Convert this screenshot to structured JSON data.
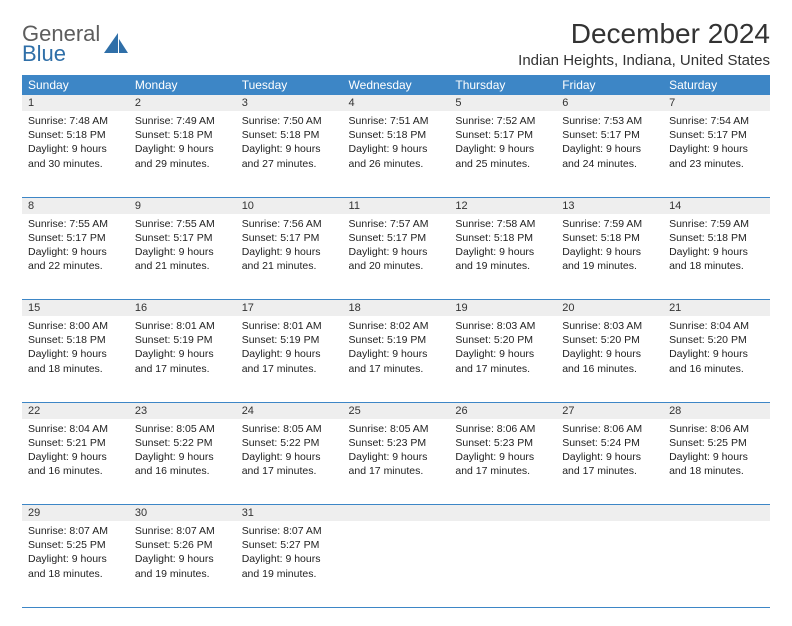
{
  "brand": {
    "word1": "General",
    "word2": "Blue"
  },
  "title": "December 2024",
  "location": "Indian Heights, Indiana, United States",
  "colors": {
    "header_bg": "#3d86c6",
    "header_text": "#ffffff",
    "daynum_bg": "#eeeeee",
    "border": "#3d86c6",
    "logo_gray": "#5d5d5d",
    "logo_blue": "#2f6fa8"
  },
  "day_headers": [
    "Sunday",
    "Monday",
    "Tuesday",
    "Wednesday",
    "Thursday",
    "Friday",
    "Saturday"
  ],
  "weeks": [
    {
      "nums": [
        "1",
        "2",
        "3",
        "4",
        "5",
        "6",
        "7"
      ],
      "cells": [
        {
          "sunrise": "Sunrise: 7:48 AM",
          "sunset": "Sunset: 5:18 PM",
          "day1": "Daylight: 9 hours",
          "day2": "and 30 minutes."
        },
        {
          "sunrise": "Sunrise: 7:49 AM",
          "sunset": "Sunset: 5:18 PM",
          "day1": "Daylight: 9 hours",
          "day2": "and 29 minutes."
        },
        {
          "sunrise": "Sunrise: 7:50 AM",
          "sunset": "Sunset: 5:18 PM",
          "day1": "Daylight: 9 hours",
          "day2": "and 27 minutes."
        },
        {
          "sunrise": "Sunrise: 7:51 AM",
          "sunset": "Sunset: 5:18 PM",
          "day1": "Daylight: 9 hours",
          "day2": "and 26 minutes."
        },
        {
          "sunrise": "Sunrise: 7:52 AM",
          "sunset": "Sunset: 5:17 PM",
          "day1": "Daylight: 9 hours",
          "day2": "and 25 minutes."
        },
        {
          "sunrise": "Sunrise: 7:53 AM",
          "sunset": "Sunset: 5:17 PM",
          "day1": "Daylight: 9 hours",
          "day2": "and 24 minutes."
        },
        {
          "sunrise": "Sunrise: 7:54 AM",
          "sunset": "Sunset: 5:17 PM",
          "day1": "Daylight: 9 hours",
          "day2": "and 23 minutes."
        }
      ]
    },
    {
      "nums": [
        "8",
        "9",
        "10",
        "11",
        "12",
        "13",
        "14"
      ],
      "cells": [
        {
          "sunrise": "Sunrise: 7:55 AM",
          "sunset": "Sunset: 5:17 PM",
          "day1": "Daylight: 9 hours",
          "day2": "and 22 minutes."
        },
        {
          "sunrise": "Sunrise: 7:55 AM",
          "sunset": "Sunset: 5:17 PM",
          "day1": "Daylight: 9 hours",
          "day2": "and 21 minutes."
        },
        {
          "sunrise": "Sunrise: 7:56 AM",
          "sunset": "Sunset: 5:17 PM",
          "day1": "Daylight: 9 hours",
          "day2": "and 21 minutes."
        },
        {
          "sunrise": "Sunrise: 7:57 AM",
          "sunset": "Sunset: 5:17 PM",
          "day1": "Daylight: 9 hours",
          "day2": "and 20 minutes."
        },
        {
          "sunrise": "Sunrise: 7:58 AM",
          "sunset": "Sunset: 5:18 PM",
          "day1": "Daylight: 9 hours",
          "day2": "and 19 minutes."
        },
        {
          "sunrise": "Sunrise: 7:59 AM",
          "sunset": "Sunset: 5:18 PM",
          "day1": "Daylight: 9 hours",
          "day2": "and 19 minutes."
        },
        {
          "sunrise": "Sunrise: 7:59 AM",
          "sunset": "Sunset: 5:18 PM",
          "day1": "Daylight: 9 hours",
          "day2": "and 18 minutes."
        }
      ]
    },
    {
      "nums": [
        "15",
        "16",
        "17",
        "18",
        "19",
        "20",
        "21"
      ],
      "cells": [
        {
          "sunrise": "Sunrise: 8:00 AM",
          "sunset": "Sunset: 5:18 PM",
          "day1": "Daylight: 9 hours",
          "day2": "and 18 minutes."
        },
        {
          "sunrise": "Sunrise: 8:01 AM",
          "sunset": "Sunset: 5:19 PM",
          "day1": "Daylight: 9 hours",
          "day2": "and 17 minutes."
        },
        {
          "sunrise": "Sunrise: 8:01 AM",
          "sunset": "Sunset: 5:19 PM",
          "day1": "Daylight: 9 hours",
          "day2": "and 17 minutes."
        },
        {
          "sunrise": "Sunrise: 8:02 AM",
          "sunset": "Sunset: 5:19 PM",
          "day1": "Daylight: 9 hours",
          "day2": "and 17 minutes."
        },
        {
          "sunrise": "Sunrise: 8:03 AM",
          "sunset": "Sunset: 5:20 PM",
          "day1": "Daylight: 9 hours",
          "day2": "and 17 minutes."
        },
        {
          "sunrise": "Sunrise: 8:03 AM",
          "sunset": "Sunset: 5:20 PM",
          "day1": "Daylight: 9 hours",
          "day2": "and 16 minutes."
        },
        {
          "sunrise": "Sunrise: 8:04 AM",
          "sunset": "Sunset: 5:20 PM",
          "day1": "Daylight: 9 hours",
          "day2": "and 16 minutes."
        }
      ]
    },
    {
      "nums": [
        "22",
        "23",
        "24",
        "25",
        "26",
        "27",
        "28"
      ],
      "cells": [
        {
          "sunrise": "Sunrise: 8:04 AM",
          "sunset": "Sunset: 5:21 PM",
          "day1": "Daylight: 9 hours",
          "day2": "and 16 minutes."
        },
        {
          "sunrise": "Sunrise: 8:05 AM",
          "sunset": "Sunset: 5:22 PM",
          "day1": "Daylight: 9 hours",
          "day2": "and 16 minutes."
        },
        {
          "sunrise": "Sunrise: 8:05 AM",
          "sunset": "Sunset: 5:22 PM",
          "day1": "Daylight: 9 hours",
          "day2": "and 17 minutes."
        },
        {
          "sunrise": "Sunrise: 8:05 AM",
          "sunset": "Sunset: 5:23 PM",
          "day1": "Daylight: 9 hours",
          "day2": "and 17 minutes."
        },
        {
          "sunrise": "Sunrise: 8:06 AM",
          "sunset": "Sunset: 5:23 PM",
          "day1": "Daylight: 9 hours",
          "day2": "and 17 minutes."
        },
        {
          "sunrise": "Sunrise: 8:06 AM",
          "sunset": "Sunset: 5:24 PM",
          "day1": "Daylight: 9 hours",
          "day2": "and 17 minutes."
        },
        {
          "sunrise": "Sunrise: 8:06 AM",
          "sunset": "Sunset: 5:25 PM",
          "day1": "Daylight: 9 hours",
          "day2": "and 18 minutes."
        }
      ]
    },
    {
      "nums": [
        "29",
        "30",
        "31",
        "",
        "",
        "",
        ""
      ],
      "cells": [
        {
          "sunrise": "Sunrise: 8:07 AM",
          "sunset": "Sunset: 5:25 PM",
          "day1": "Daylight: 9 hours",
          "day2": "and 18 minutes."
        },
        {
          "sunrise": "Sunrise: 8:07 AM",
          "sunset": "Sunset: 5:26 PM",
          "day1": "Daylight: 9 hours",
          "day2": "and 19 minutes."
        },
        {
          "sunrise": "Sunrise: 8:07 AM",
          "sunset": "Sunset: 5:27 PM",
          "day1": "Daylight: 9 hours",
          "day2": "and 19 minutes."
        },
        null,
        null,
        null,
        null
      ]
    }
  ]
}
